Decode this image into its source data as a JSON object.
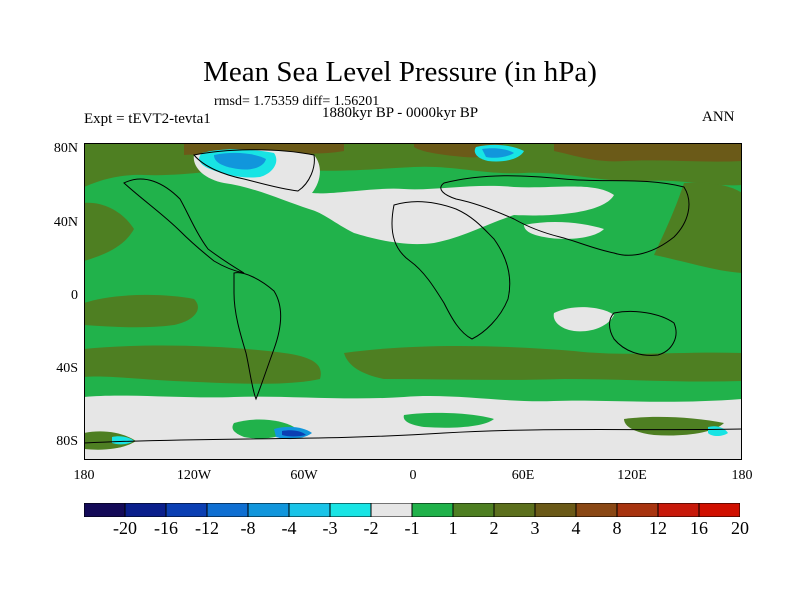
{
  "title": "Mean Sea Level Pressure (in hPa)",
  "stats": "rmsd= 1.75359 diff= 1.56201",
  "experiment": "Expt = tEVT2-tevta1",
  "period": "1880kyr BP - 0000kyr BP",
  "season": "ANN",
  "lat_ticks": [
    "80N",
    "40N",
    "0",
    "40S",
    "80S"
  ],
  "lon_ticks": [
    "180",
    "120W",
    "60W",
    "0",
    "60E",
    "120E",
    "180"
  ],
  "legend": {
    "colors": [
      "#140a58",
      "#0a1f8c",
      "#0b3fb3",
      "#0f6fd2",
      "#1196dc",
      "#19c4e8",
      "#18e4e4",
      "#e6e6e6",
      "#21b24b",
      "#4e7f22",
      "#5c701d",
      "#6b5a18",
      "#8a4815",
      "#a8340f",
      "#c8190a",
      "#d00f00"
    ],
    "labels": [
      "-20",
      "-16",
      "-12",
      "-8",
      "-4",
      "-3",
      "-2",
      "-1",
      "1",
      "2",
      "3",
      "4",
      "8",
      "12",
      "16",
      "20"
    ]
  },
  "palette": {
    "ocean_mid": "#21b24b",
    "olive": "#4e7f22",
    "brown": "#6b5a18",
    "light_gray": "#e6e6e6",
    "cyan": "#18e4e4",
    "blue": "#1196dc",
    "deep_blue": "#0b3fb3"
  }
}
